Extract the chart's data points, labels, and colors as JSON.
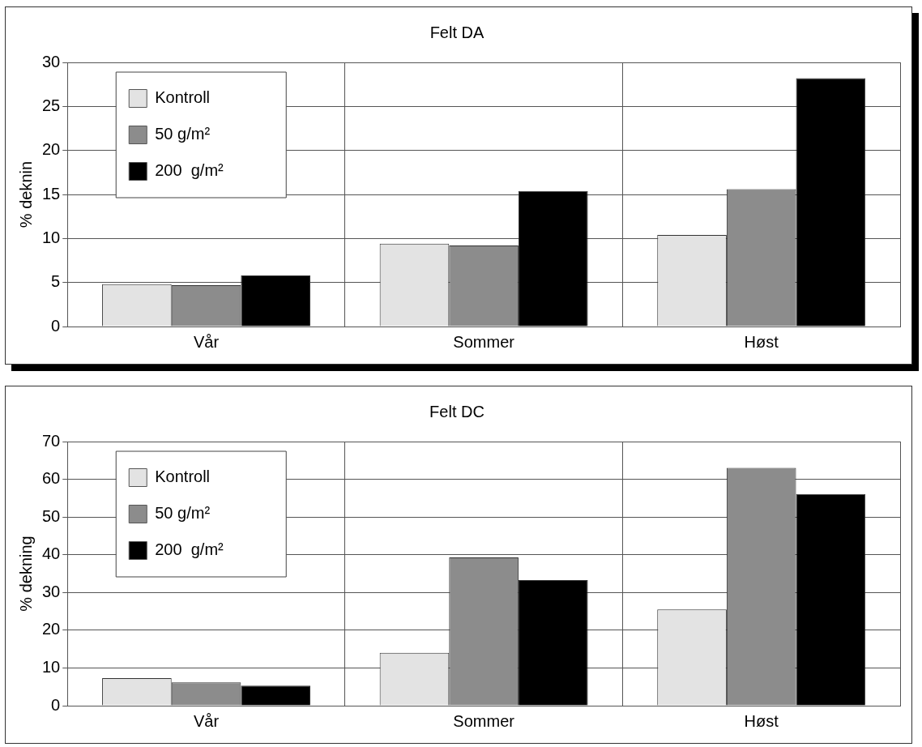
{
  "chart_data": [
    {
      "type": "bar",
      "title": "Felt DA",
      "ylabel": "% deknin",
      "categories": [
        "Vår",
        "Sommer",
        "Høst"
      ],
      "series": [
        {
          "name": "Kontroll",
          "color": "#e3e3e3",
          "values": [
            4.8,
            9.4,
            10.4
          ]
        },
        {
          "name": "50 g/m²",
          "color": "#8c8c8c",
          "values": [
            4.7,
            9.2,
            15.6
          ]
        },
        {
          "name": "200  g/m²",
          "color": "#000000",
          "values": [
            5.8,
            15.4,
            28.2
          ]
        }
      ],
      "ylim": [
        0,
        30
      ],
      "yticks": [
        0,
        5,
        10,
        15,
        20,
        25,
        30
      ],
      "grid": true,
      "legend": "top left"
    },
    {
      "type": "bar",
      "title": "Felt DC",
      "ylabel": "% dekning",
      "categories": [
        "Vår",
        "Sommer",
        "Høst"
      ],
      "series": [
        {
          "name": "Kontroll",
          "color": "#e3e3e3",
          "values": [
            7.3,
            14,
            25.5
          ]
        },
        {
          "name": "50 g/m²",
          "color": "#8c8c8c",
          "values": [
            6.2,
            39.3,
            63
          ]
        },
        {
          "name": "200  g/m²",
          "color": "#000000",
          "values": [
            5.3,
            33.3,
            56.1
          ]
        }
      ],
      "ylim": [
        0,
        70
      ],
      "yticks": [
        0,
        10,
        20,
        30,
        40,
        50,
        60,
        70
      ],
      "grid": true,
      "legend": "top left"
    }
  ]
}
